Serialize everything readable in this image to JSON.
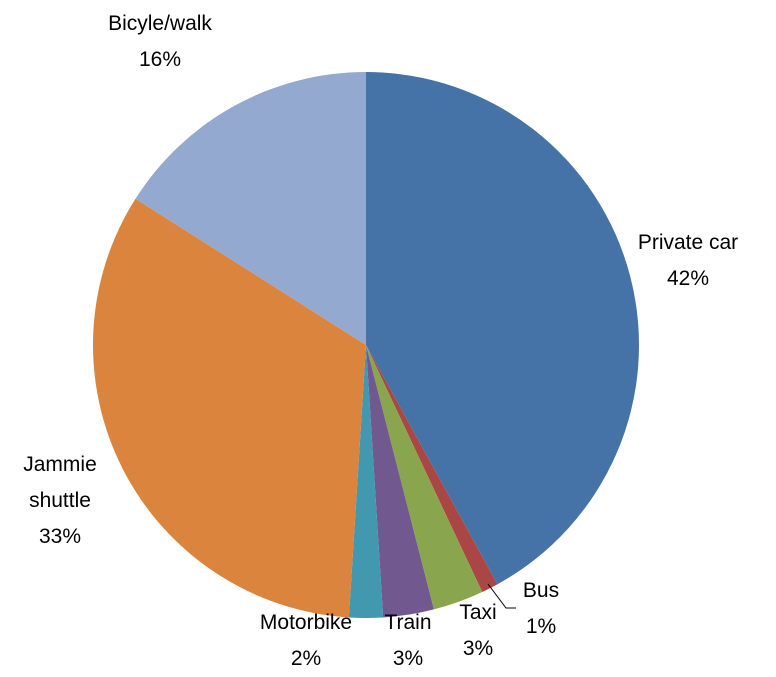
{
  "chart_data": {
    "type": "pie",
    "categories": [
      "Private car",
      "Bus",
      "Taxi",
      "Train",
      "Motorbike",
      "Jammie shuttle",
      "Bicyle/walk"
    ],
    "values": [
      42,
      1,
      3,
      3,
      2,
      33,
      16
    ],
    "value_labels": [
      "42%",
      "1%",
      "3%",
      "3%",
      "2%",
      "33%",
      "16%"
    ],
    "colors": [
      "#4572a7",
      "#aa4643",
      "#89a54e",
      "#71588f",
      "#4198af",
      "#db843d",
      "#93a9cf"
    ]
  }
}
